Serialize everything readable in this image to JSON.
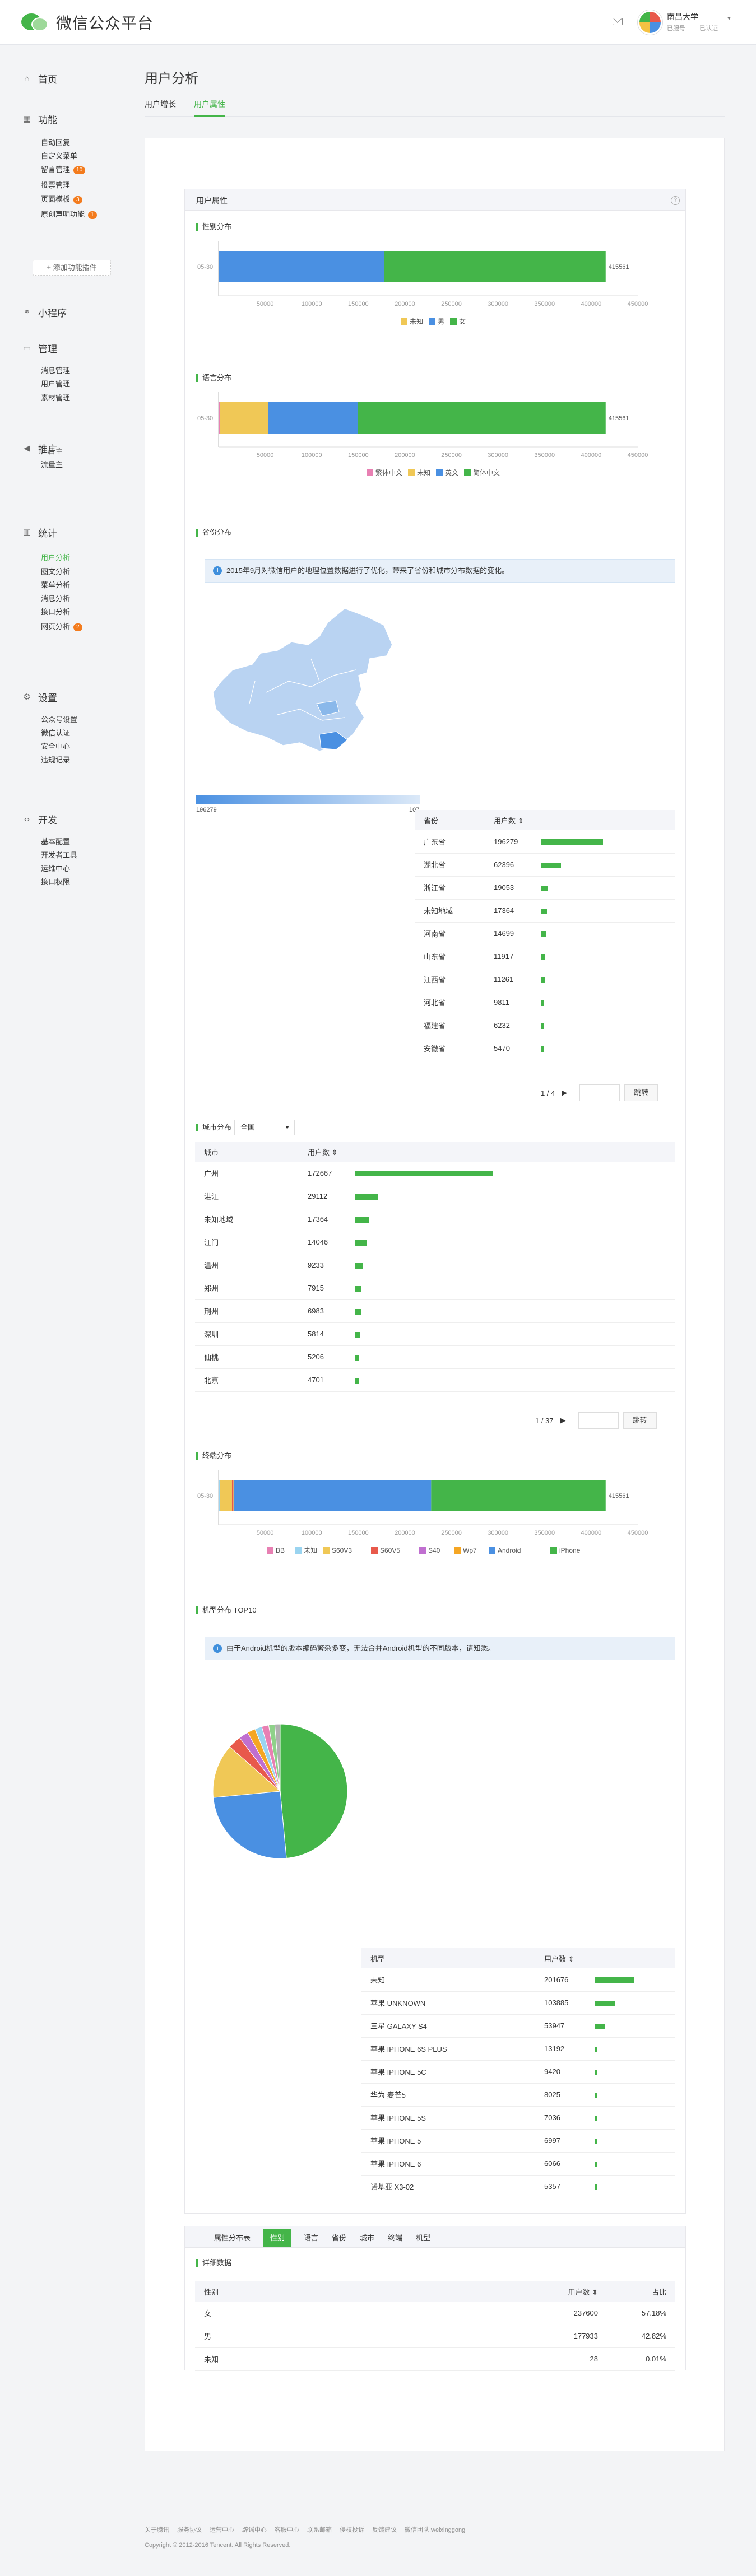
{
  "header": {
    "app_title": "微信公众平台",
    "account_name": "南昌大学",
    "account_type": "已服号",
    "account_status": "已认证"
  },
  "sidebar": {
    "home": "首页",
    "sections": [
      {
        "label": "功能",
        "icon": "grid-icon",
        "items": [
          {
            "label": "自动回复"
          },
          {
            "label": "自定义菜单"
          },
          {
            "label": "留言管理",
            "tag": "10"
          },
          {
            "label": "投票管理"
          },
          {
            "label": "页面模板",
            "tag": "3"
          },
          {
            "label": "原创声明功能",
            "tag": "1"
          }
        ]
      },
      {
        "label": "小程序",
        "icon": "link-icon",
        "items": []
      },
      {
        "label": "管理",
        "icon": "monitor-icon",
        "items": [
          {
            "label": "消息管理"
          },
          {
            "label": "用户管理"
          },
          {
            "label": "素材管理"
          }
        ]
      },
      {
        "label": "推广",
        "icon": "megaphone-icon",
        "items": [
          {
            "label": "广告主"
          },
          {
            "label": "流量主"
          }
        ]
      },
      {
        "label": "统计",
        "icon": "chart-icon",
        "items": [
          {
            "label": "用户分析"
          },
          {
            "label": "图文分析"
          },
          {
            "label": "菜单分析"
          },
          {
            "label": "消息分析"
          },
          {
            "label": "接口分析"
          },
          {
            "label": "网页分析",
            "tag": "2"
          }
        ]
      },
      {
        "label": "设置",
        "icon": "gear-icon",
        "items": [
          {
            "label": "公众号设置"
          },
          {
            "label": "微信认证"
          },
          {
            "label": "安全中心"
          },
          {
            "label": "违规记录"
          }
        ]
      },
      {
        "label": "开发",
        "icon": "code-icon",
        "items": [
          {
            "label": "基本配置"
          },
          {
            "label": "开发者工具"
          },
          {
            "label": "运维中心"
          },
          {
            "label": "接口权限"
          }
        ]
      }
    ],
    "add_plugin": "+ 添加功能插件"
  },
  "page": {
    "title": "用户分析",
    "tabs": [
      "用户增长",
      "用户属性"
    ],
    "active_tab": "用户属性"
  },
  "panel": {
    "title": "用户属性",
    "help": "?"
  },
  "gender": {
    "title": "性别分布"
  },
  "language": {
    "title": "语言分布"
  },
  "province": {
    "title": "省份分布",
    "notice": "2015年9月对微信用户的地理位置数据进行了优化，带来了省份和城市分布数据的变化。",
    "range_min": "196279",
    "range_max": "107",
    "headers": [
      "省份",
      "用户数 ⇕"
    ],
    "rows": [
      [
        "广东省",
        "196279"
      ],
      [
        "湖北省",
        "62396"
      ],
      [
        "浙江省",
        "19053"
      ],
      [
        "未知地域",
        "17364"
      ],
      [
        "河南省",
        "14699"
      ],
      [
        "山东省",
        "11917"
      ],
      [
        "江西省",
        "11261"
      ],
      [
        "河北省",
        "9811"
      ],
      [
        "福建省",
        "6232"
      ],
      [
        "安徽省",
        "5470"
      ]
    ],
    "pager": "1 / 4",
    "go": "跳转"
  },
  "city": {
    "title": "城市分布",
    "select": "全国",
    "headers": [
      "城市",
      "用户数 ⇕"
    ],
    "rows": [
      [
        "广州",
        "172667"
      ],
      [
        "湛江",
        "29112"
      ],
      [
        "未知地域",
        "17364"
      ],
      [
        "江门",
        "14046"
      ],
      [
        "温州",
        "9233"
      ],
      [
        "郑州",
        "7915"
      ],
      [
        "荆州",
        "6983"
      ],
      [
        "深圳",
        "5814"
      ],
      [
        "仙桃",
        "5206"
      ],
      [
        "北京",
        "4701"
      ]
    ],
    "pager": "1 / 37",
    "go": "跳转"
  },
  "terminal": {
    "title": "终端分布"
  },
  "device": {
    "title": "机型分布 TOP10",
    "notice": "由于Android机型的版本编码繁杂多变，无法合并Android机型的不同版本，请知悉。",
    "headers": [
      "机型",
      "用户数 ⇕"
    ],
    "rows": [
      [
        "未知",
        "201676"
      ],
      [
        "苹果 UNKNOWN",
        "103885"
      ],
      [
        "三星 GALAXY S4",
        "53947"
      ],
      [
        "苹果 IPHONE 6S PLUS",
        "13192"
      ],
      [
        "苹果 IPHONE 5C",
        "9420"
      ],
      [
        "华为 麦芒5",
        "8025"
      ],
      [
        "苹果 IPHONE 5S",
        "7036"
      ],
      [
        "苹果 IPHONE 5",
        "6997"
      ],
      [
        "苹果 IPHONE 6",
        "6066"
      ],
      [
        "诺基亚 X3-02",
        "5357"
      ]
    ]
  },
  "category_tabs": {
    "label": "属性分布表",
    "tabs": [
      "性别",
      "语言",
      "省份",
      "城市",
      "终端",
      "机型"
    ],
    "active": "性别"
  },
  "detail": {
    "title": "详细数据",
    "headers": [
      "性别",
      "用户数 ⇕",
      "占比"
    ],
    "rows": [
      [
        "女",
        "237600",
        "57.18%"
      ],
      [
        "男",
        "177933",
        "42.82%"
      ],
      [
        "未知",
        "28",
        "0.01%"
      ]
    ]
  },
  "footer": {
    "links": [
      "关于腾讯",
      "服务协议",
      "运营中心",
      "辟谣中心",
      "客服中心",
      "联系邮箱",
      "侵权投诉",
      "反馈建议",
      "微信团队:weixinggong"
    ],
    "copyright": "Copyright © 2012-2016 Tencent. All Rights Reserved."
  },
  "chart_data": [
    {
      "type": "bar",
      "title": "性别分布",
      "orientation": "stacked-horizontal",
      "categories": [
        "05-30"
      ],
      "series": [
        {
          "name": "未知",
          "values": [
            28
          ],
          "color": "#f0c856"
        },
        {
          "name": "男",
          "values": [
            177933
          ],
          "color": "#4a90e2"
        },
        {
          "name": "女",
          "values": [
            237600
          ],
          "color": "#44b549"
        }
      ],
      "total_label": "415561",
      "xticks": [
        "50000",
        "100000",
        "150000",
        "200000",
        "250000",
        "300000",
        "350000",
        "400000",
        "450000"
      ],
      "xlim": [
        0,
        450000
      ],
      "legend": "bottom"
    },
    {
      "type": "bar",
      "title": "语言分布",
      "orientation": "stacked-horizontal",
      "categories": [
        "05-30"
      ],
      "series": [
        {
          "name": "繁体中文",
          "values": [
            1200
          ],
          "color": "#e880b3"
        },
        {
          "name": "未知",
          "values": [
            52000
          ],
          "color": "#f0c856"
        },
        {
          "name": "英文",
          "values": [
            96000
          ],
          "color": "#4a90e2"
        },
        {
          "name": "简体中文",
          "values": [
            266361
          ],
          "color": "#44b549"
        }
      ],
      "total_label": "415561",
      "xticks": [
        "50000",
        "100000",
        "150000",
        "200000",
        "250000",
        "300000",
        "350000",
        "400000",
        "450000"
      ],
      "xlim": [
        0,
        450000
      ],
      "legend": "bottom"
    },
    {
      "type": "bar",
      "title": "终端分布",
      "orientation": "stacked-horizontal",
      "categories": [
        "05-30"
      ],
      "series": [
        {
          "name": "BB",
          "values": [
            600
          ],
          "color": "#e880b3"
        },
        {
          "name": "未知",
          "values": [
            800
          ],
          "color": "#9ad4f0"
        },
        {
          "name": "S60V3",
          "values": [
            13000
          ],
          "color": "#f0c856"
        },
        {
          "name": "S60V5",
          "values": [
            900
          ],
          "color": "#e8594b"
        },
        {
          "name": "S40",
          "values": [
            500
          ],
          "color": "#c06fd0"
        },
        {
          "name": "Wp7",
          "values": [
            400
          ],
          "color": "#f5a623"
        },
        {
          "name": "Android",
          "values": [
            212000
          ],
          "color": "#4a90e2"
        },
        {
          "name": "iPhone",
          "values": [
            187361
          ],
          "color": "#44b549"
        }
      ],
      "total_label": "415561",
      "xticks": [
        "50000",
        "100000",
        "150000",
        "200000",
        "250000",
        "300000",
        "350000",
        "400000",
        "450000"
      ],
      "xlim": [
        0,
        450000
      ],
      "legend": "bottom"
    },
    {
      "type": "pie",
      "title": "机型分布 TOP10",
      "series": [
        {
          "name": "未知",
          "value": 201676,
          "color": "#44b549"
        },
        {
          "name": "苹果 UNKNOWN",
          "value": 103885,
          "color": "#4a90e2"
        },
        {
          "name": "三星 GALAXY S4",
          "value": 53947,
          "color": "#f0c856"
        },
        {
          "name": "苹果 IPHONE 6S PLUS",
          "value": 13192,
          "color": "#e8594b"
        },
        {
          "name": "苹果 IPHONE 5C",
          "value": 9420,
          "color": "#c06fd0"
        },
        {
          "name": "华为 麦芒5",
          "value": 8025,
          "color": "#f5a623"
        },
        {
          "name": "苹果 IPHONE 5S",
          "value": 7036,
          "color": "#9ad4f0"
        },
        {
          "name": "苹果 IPHONE 5",
          "value": 6997,
          "color": "#e880b3"
        },
        {
          "name": "苹果 IPHONE 6",
          "value": 6066,
          "color": "#8fd18a"
        },
        {
          "name": "诺基亚 X3-02",
          "value": 5357,
          "color": "#b0b0b0"
        }
      ]
    }
  ]
}
